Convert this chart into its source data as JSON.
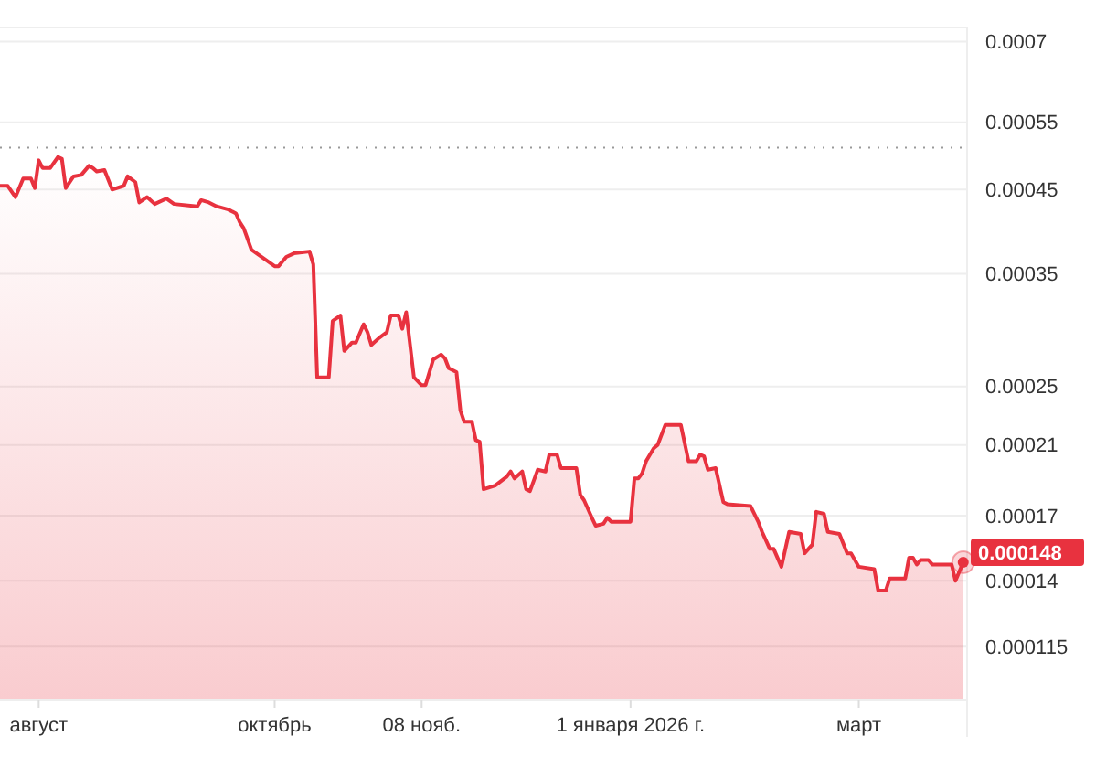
{
  "chart_data": {
    "type": "area",
    "x": [
      "2025-07-22",
      "2025-07-24",
      "2025-07-26",
      "2025-07-28",
      "2025-07-30",
      "2025-07-31",
      "2025-08-01",
      "2025-08-02",
      "2025-08-04",
      "2025-08-06",
      "2025-08-07",
      "2025-08-08",
      "2025-08-10",
      "2025-08-12",
      "2025-08-14",
      "2025-08-15",
      "2025-08-16",
      "2025-08-18",
      "2025-08-20",
      "2025-08-23",
      "2025-08-24",
      "2025-08-26",
      "2025-08-27",
      "2025-08-29",
      "2025-08-31",
      "2025-09-03",
      "2025-09-05",
      "2025-09-11",
      "2025-09-12",
      "2025-09-14",
      "2025-09-16",
      "2025-09-19",
      "2025-09-21",
      "2025-09-22",
      "2025-09-23",
      "2025-09-25",
      "2025-09-27",
      "2025-10-01",
      "2025-10-02",
      "2025-10-04",
      "2025-10-06",
      "2025-10-10",
      "2025-10-11",
      "2025-10-12",
      "2025-10-15",
      "2025-10-16",
      "2025-10-18",
      "2025-10-19",
      "2025-10-21",
      "2025-10-22",
      "2025-10-24",
      "2025-10-25",
      "2025-10-26",
      "2025-10-28",
      "2025-10-30",
      "2025-10-31",
      "2025-11-02",
      "2025-11-03",
      "2025-11-04",
      "2025-11-06",
      "2025-11-08",
      "2025-11-09",
      "2025-11-11",
      "2025-11-13",
      "2025-11-14",
      "2025-11-15",
      "2025-11-17",
      "2025-11-18",
      "2025-11-19",
      "2025-11-21",
      "2025-11-22",
      "2025-11-23",
      "2025-11-24",
      "2025-11-27",
      "2025-11-30",
      "2025-12-01",
      "2025-12-02",
      "2025-12-04",
      "2025-12-05",
      "2025-12-06",
      "2025-12-08",
      "2025-12-10",
      "2025-12-11",
      "2025-12-13",
      "2025-12-14",
      "2025-12-18",
      "2025-12-19",
      "2025-12-20",
      "2025-12-22",
      "2025-12-23",
      "2025-12-25",
      "2025-12-26",
      "2025-12-27",
      "2026-01-01",
      "2026-01-02",
      "2026-01-03",
      "2026-01-04",
      "2026-01-05",
      "2026-01-07",
      "2026-01-08",
      "2026-01-10",
      "2026-01-14",
      "2026-01-16",
      "2026-01-18",
      "2026-01-19",
      "2026-01-20",
      "2026-01-21",
      "2026-01-23",
      "2026-01-25",
      "2026-01-26",
      "2026-02-01",
      "2026-02-03",
      "2026-02-04",
      "2026-02-06",
      "2026-02-07",
      "2026-02-09",
      "2026-02-11",
      "2026-02-14",
      "2026-02-15",
      "2026-02-17",
      "2026-02-18",
      "2026-02-20",
      "2026-02-21",
      "2026-02-24",
      "2026-02-26",
      "2026-02-27",
      "2026-03-01",
      "2026-03-05",
      "2026-03-06",
      "2026-03-08",
      "2026-03-09",
      "2026-03-13",
      "2026-03-14",
      "2026-03-15",
      "2026-03-16",
      "2026-03-17",
      "2026-03-19",
      "2026-03-20",
      "2026-03-25",
      "2026-03-26",
      "2026-03-28"
    ],
    "series": [
      {
        "color": "#e8323f",
        "values": [
          0.000455,
          0.000455,
          0.00044,
          0.000465,
          0.000465,
          0.000452,
          0.000491,
          0.00048,
          0.00048,
          0.000496,
          0.000493,
          0.000452,
          0.000468,
          0.00047,
          0.000483,
          0.00048,
          0.000475,
          0.000477,
          0.00045,
          0.000455,
          0.000468,
          0.00046,
          0.000433,
          0.00044,
          0.000431,
          0.000438,
          0.000431,
          0.000428,
          0.000436,
          0.000433,
          0.000428,
          0.000424,
          0.000419,
          0.000408,
          0.000401,
          0.000376,
          0.00037,
          0.000358,
          0.000358,
          0.000368,
          0.000372,
          0.000374,
          0.00036,
          0.000257,
          0.000257,
          0.000304,
          0.000309,
          0.000278,
          0.000285,
          0.000285,
          0.000301,
          0.000294,
          0.000283,
          0.000289,
          0.000294,
          0.000309,
          0.000309,
          0.000297,
          0.000312,
          0.000257,
          0.000251,
          0.000251,
          0.000271,
          0.000275,
          0.000272,
          0.000264,
          0.000261,
          0.000233,
          0.000225,
          0.000225,
          0.000213,
          0.000212,
          0.000184,
          0.000186,
          0.000191,
          0.000194,
          0.00019,
          0.000194,
          0.000184,
          0.000183,
          0.000195,
          0.000194,
          0.000204,
          0.000204,
          0.000196,
          0.000196,
          0.000181,
          0.000178,
          0.000169,
          0.000165,
          0.000166,
          0.000169,
          0.000167,
          0.000167,
          0.00019,
          0.00019,
          0.000193,
          0.0002,
          0.000208,
          0.00021,
          0.000223,
          0.000223,
          0.0002,
          0.0002,
          0.000204,
          0.000203,
          0.000195,
          0.000196,
          0.000177,
          0.000176,
          0.000175,
          0.000167,
          0.000162,
          0.000154,
          0.000154,
          0.000146,
          0.000162,
          0.000161,
          0.000152,
          0.000156,
          0.000172,
          0.000171,
          0.000162,
          0.000161,
          0.000152,
          0.000152,
          0.000146,
          0.000145,
          0.000136,
          0.000136,
          0.000141,
          0.000141,
          0.00015,
          0.00015,
          0.000147,
          0.000149,
          0.000149,
          0.000147,
          0.000147,
          0.00014,
          0.000148
        ]
      }
    ],
    "xlim": [
      "2025-07-22",
      "2026-03-29"
    ],
    "xticks": [
      {
        "value": "2025-08-01",
        "label": "август"
      },
      {
        "value": "2025-10-01",
        "label": "октябрь"
      },
      {
        "value": "2025-11-08",
        "label": "08 нояб."
      },
      {
        "value": "2026-01-01",
        "label": "1 января 2026 г."
      },
      {
        "value": "2026-03-01",
        "label": "март"
      }
    ],
    "ylim": [
      9.8e-05,
      0.00073
    ],
    "yticks": [
      0.000115,
      0.00014,
      0.00017,
      0.00021,
      0.00025,
      0.00035,
      0.00045,
      0.00055,
      0.0007
    ],
    "log": "y",
    "grid": "y",
    "ref_lines": [
      {
        "axis": "y",
        "value": 0.00051,
        "color": "#999999",
        "line_style": "dotted"
      }
    ],
    "annotations": [
      {
        "text": "0.000148",
        "x": "2026-03-28",
        "y": 0.000148
      }
    ]
  }
}
